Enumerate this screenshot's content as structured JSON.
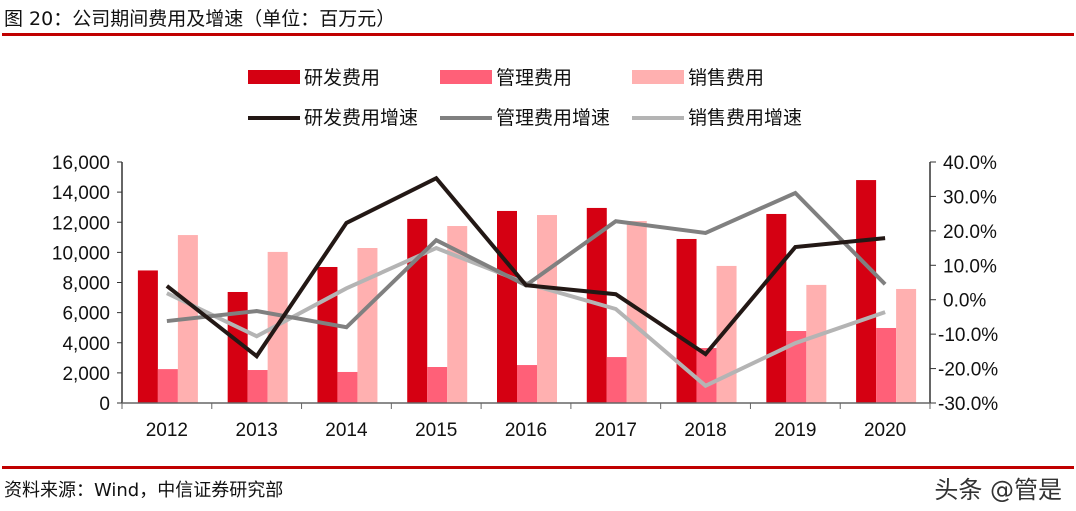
{
  "title": "图 20：公司期间费用及增速（单位：百万元）",
  "source": "资料来源：Wind，中信证券研究部",
  "watermark": "头条 @管是",
  "chart_data": {
    "type": "bar+line",
    "categories": [
      "2012",
      "2013",
      "2014",
      "2015",
      "2016",
      "2017",
      "2018",
      "2019",
      "2020"
    ],
    "bar_series": [
      {
        "name": "研发费用",
        "color": "#d50012",
        "values": [
          8800,
          7370,
          9030,
          12220,
          12750,
          12950,
          10890,
          12550,
          14800
        ]
      },
      {
        "name": "管理费用",
        "color": "#ff6078",
        "values": [
          2250,
          2190,
          2060,
          2390,
          2520,
          3050,
          3650,
          4780,
          4980
        ]
      },
      {
        "name": "销售费用",
        "color": "#ffb0b0",
        "values": [
          11150,
          10030,
          10290,
          11750,
          12480,
          12080,
          9100,
          7840,
          7570
        ]
      }
    ],
    "line_series": [
      {
        "name": "研发费用增速",
        "color": "#231815",
        "values": [
          4.0,
          -16.4,
          22.3,
          35.3,
          4.2,
          1.6,
          -15.8,
          15.3,
          17.9
        ]
      },
      {
        "name": "管理费用增速",
        "color": "#808080",
        "values": [
          -6.2,
          -3.3,
          -8.0,
          17.3,
          4.2,
          22.8,
          19.4,
          31.0,
          4.5
        ]
      },
      {
        "name": "销售费用增速",
        "color": "#b4b4b4",
        "values": [
          1.9,
          -10.6,
          3.3,
          15.0,
          4.8,
          -2.7,
          -25.0,
          -12.6,
          -3.6
        ]
      }
    ],
    "y_left": {
      "range": [
        0,
        16000
      ],
      "ticks": [
        "0",
        "2,000",
        "4,000",
        "6,000",
        "8,000",
        "10,000",
        "12,000",
        "14,000",
        "16,000"
      ]
    },
    "y_right": {
      "range": [
        -30,
        40
      ],
      "unit": "%",
      "ticks": [
        "-30.0%",
        "-20.0%",
        "-10.0%",
        "0.0%",
        "10.0%",
        "20.0%",
        "30.0%",
        "40.0%"
      ]
    },
    "grid": false,
    "legend_position": "top"
  }
}
